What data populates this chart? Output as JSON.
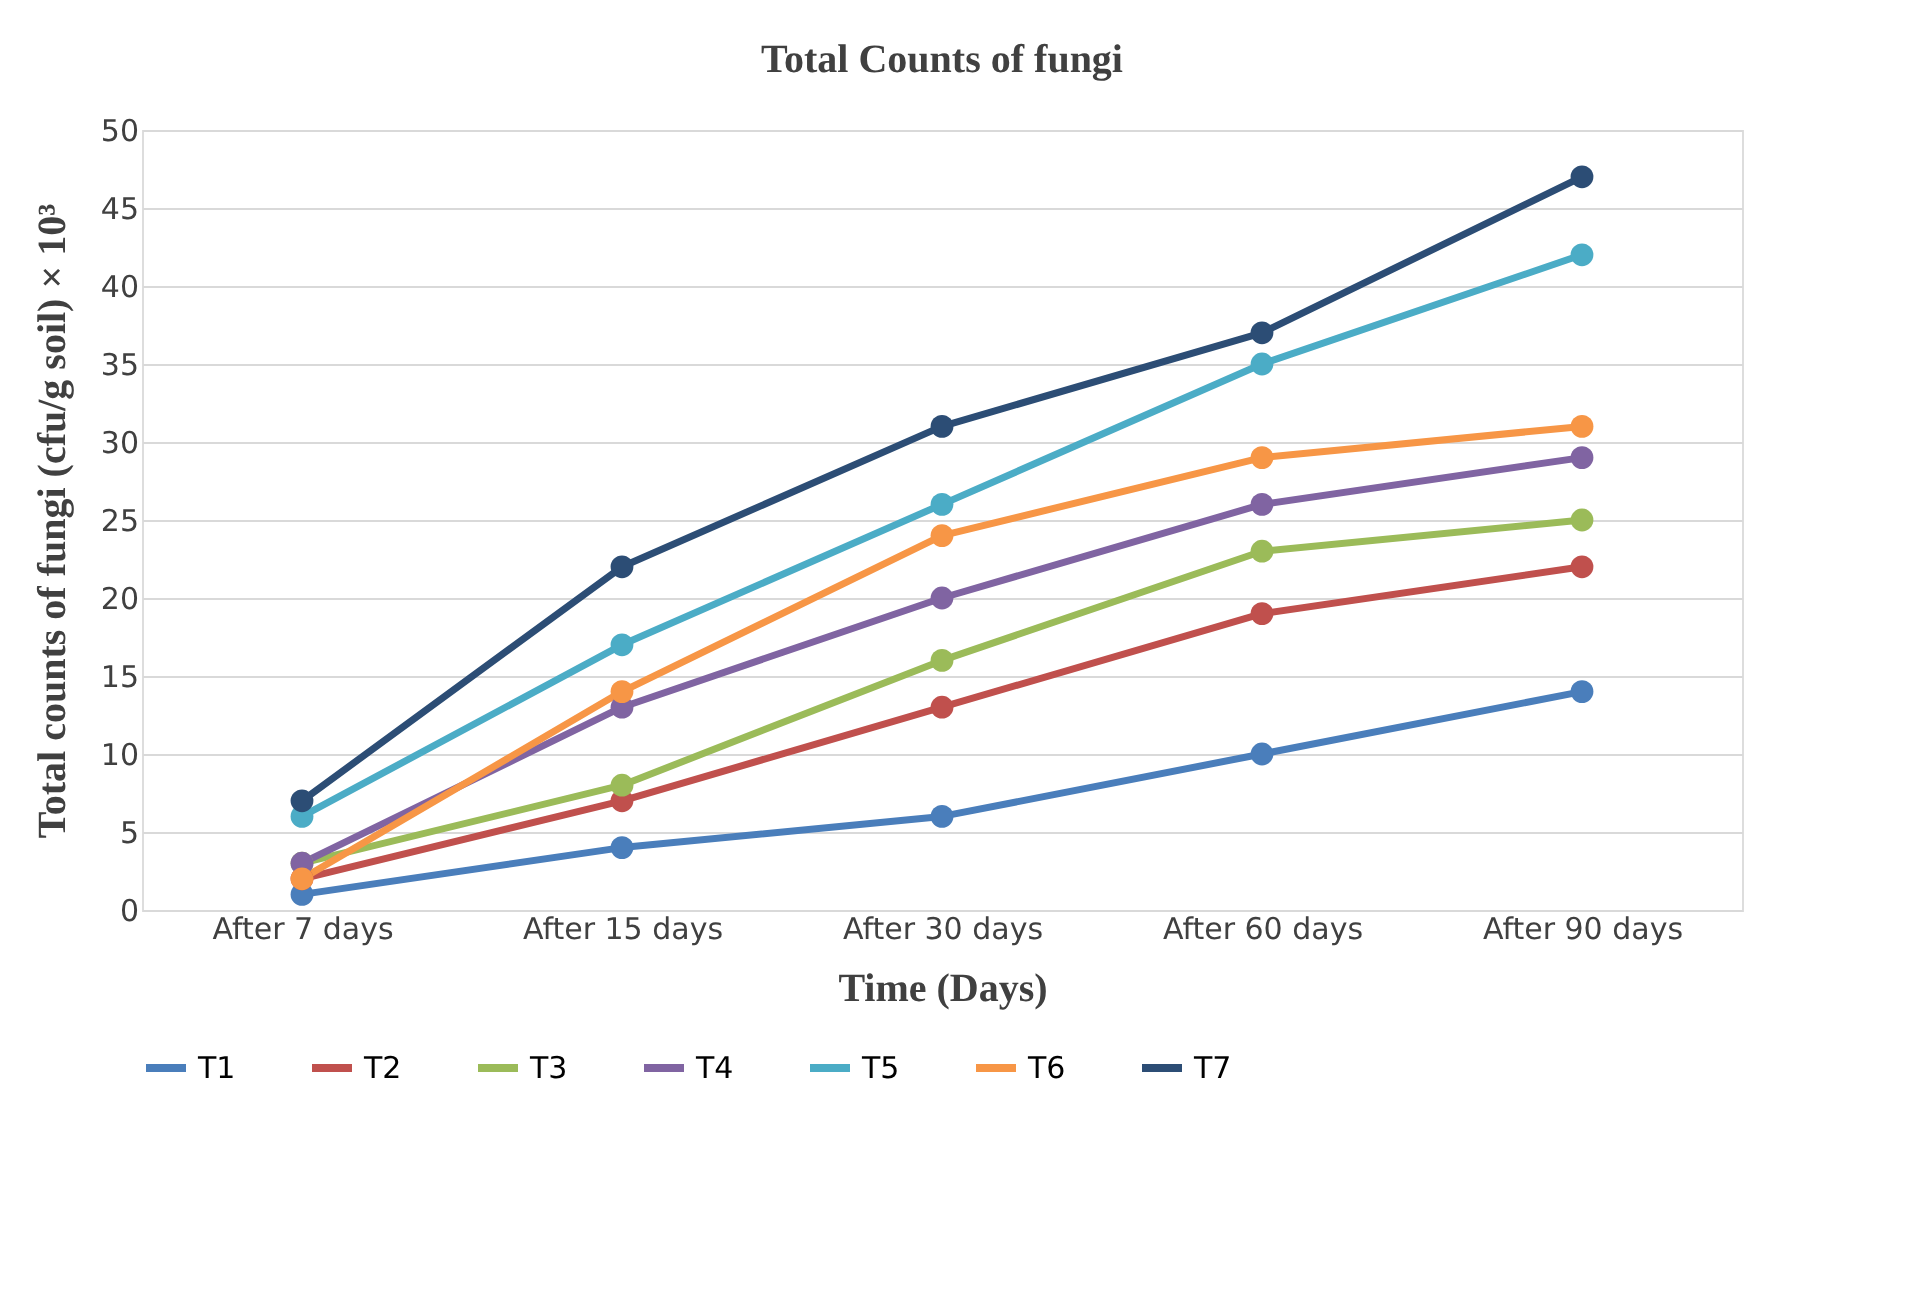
{
  "chart_data": {
    "type": "line",
    "title": "Total Counts of fungi",
    "xlabel": "Time (Days)",
    "ylabel": "Total counts of fungi (cfu/g soil) × 10³",
    "categories": [
      "After 7 days",
      "After 15 days",
      "After 30 days",
      "After 60 days",
      "After 90 days"
    ],
    "series": [
      {
        "name": "T1",
        "color": "#4a7ebb",
        "values": [
          1,
          4,
          6,
          10,
          14
        ]
      },
      {
        "name": "T2",
        "color": "#c0504d",
        "values": [
          2,
          7,
          13,
          19,
          22
        ]
      },
      {
        "name": "T3",
        "color": "#9bbb59",
        "values": [
          3,
          8,
          16,
          23,
          25
        ]
      },
      {
        "name": "T4",
        "color": "#8064a2",
        "values": [
          3,
          13,
          20,
          26,
          29
        ]
      },
      {
        "name": "T5",
        "color": "#4bacc6",
        "values": [
          6,
          17,
          26,
          35,
          42
        ]
      },
      {
        "name": "T6",
        "color": "#f79646",
        "values": [
          2,
          14,
          24,
          29,
          31
        ]
      },
      {
        "name": "T7",
        "color": "#2c4d75",
        "values": [
          7,
          22,
          31,
          37,
          47
        ]
      }
    ],
    "ylim": [
      0,
      50
    ],
    "yticks": [
      0,
      5,
      10,
      15,
      20,
      25,
      30,
      35,
      40,
      45,
      50
    ],
    "grid": "y",
    "legend": "bottom",
    "marker": "circle",
    "line_style": "solid"
  }
}
